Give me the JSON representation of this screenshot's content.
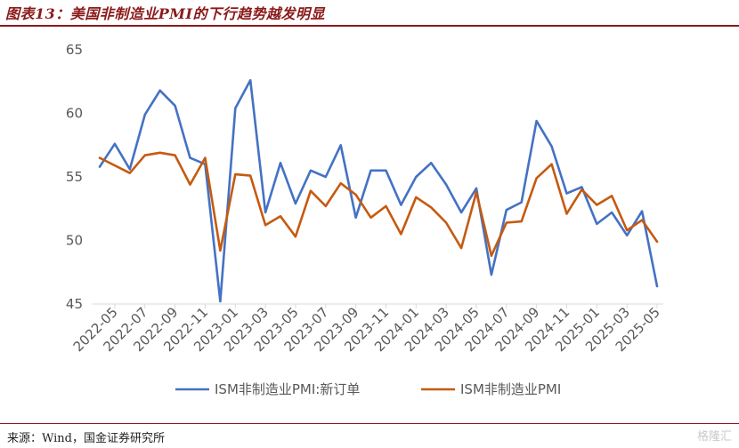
{
  "figure": {
    "title": "图表13：美国非制造业PMI的下行趋势越发明显",
    "source": "来源：Wind，国金证券研究所",
    "watermark": "格隆汇"
  },
  "chart_data": {
    "type": "line",
    "title": "图表13：美国非制造业PMI的下行趋势越发明显",
    "xlabel": "",
    "ylabel": "",
    "ylim": [
      45,
      65
    ],
    "yticks": [
      45,
      50,
      55,
      60,
      65
    ],
    "grid": false,
    "legend": "bottom",
    "x": [
      "2022-04",
      "2022-05",
      "2022-06",
      "2022-07",
      "2022-08",
      "2022-09",
      "2022-10",
      "2022-11",
      "2022-12",
      "2023-01",
      "2023-02",
      "2023-03",
      "2023-04",
      "2023-05",
      "2023-06",
      "2023-07",
      "2023-08",
      "2023-09",
      "2023-10",
      "2023-11",
      "2023-12",
      "2024-01",
      "2024-02",
      "2024-03",
      "2024-04",
      "2024-05",
      "2024-06",
      "2024-07",
      "2024-08",
      "2024-09",
      "2024-10",
      "2024-11",
      "2024-12",
      "2025-01",
      "2025-02",
      "2025-03",
      "2025-04",
      "2025-05"
    ],
    "xtick_labels": [
      "2022-05",
      "2022-07",
      "2022-09",
      "2022-11",
      "2023-01",
      "2023-03",
      "2023-05",
      "2023-07",
      "2023-09",
      "2023-11",
      "2024-01",
      "2024-03",
      "2024-05",
      "2024-07",
      "2024-09",
      "2024-11",
      "2025-01",
      "2025-03",
      "2025-05"
    ],
    "series": [
      {
        "name": "ISM非制造业PMI:新订单",
        "color": "#4472c4",
        "values": [
          55.8,
          57.6,
          55.6,
          59.9,
          61.8,
          60.6,
          56.5,
          56.0,
          45.2,
          60.4,
          62.6,
          52.2,
          56.1,
          52.9,
          55.5,
          55.0,
          57.5,
          51.8,
          55.5,
          55.5,
          52.8,
          55.0,
          56.1,
          54.4,
          52.2,
          54.1,
          47.3,
          52.4,
          53.0,
          59.4,
          57.4,
          53.7,
          54.2,
          51.3,
          52.2,
          50.4,
          52.3,
          46.4
        ]
      },
      {
        "name": "ISM非制造业PMI",
        "color": "#c55a11",
        "values": [
          56.5,
          55.9,
          55.3,
          56.7,
          56.9,
          56.7,
          54.4,
          56.5,
          49.2,
          55.2,
          55.1,
          51.2,
          51.9,
          50.3,
          53.9,
          52.7,
          54.5,
          53.6,
          51.8,
          52.7,
          50.5,
          53.4,
          52.6,
          51.4,
          49.4,
          53.8,
          48.8,
          51.4,
          51.5,
          54.9,
          56.0,
          52.1,
          54.0,
          52.8,
          53.5,
          50.8,
          51.6,
          49.9
        ]
      }
    ]
  }
}
